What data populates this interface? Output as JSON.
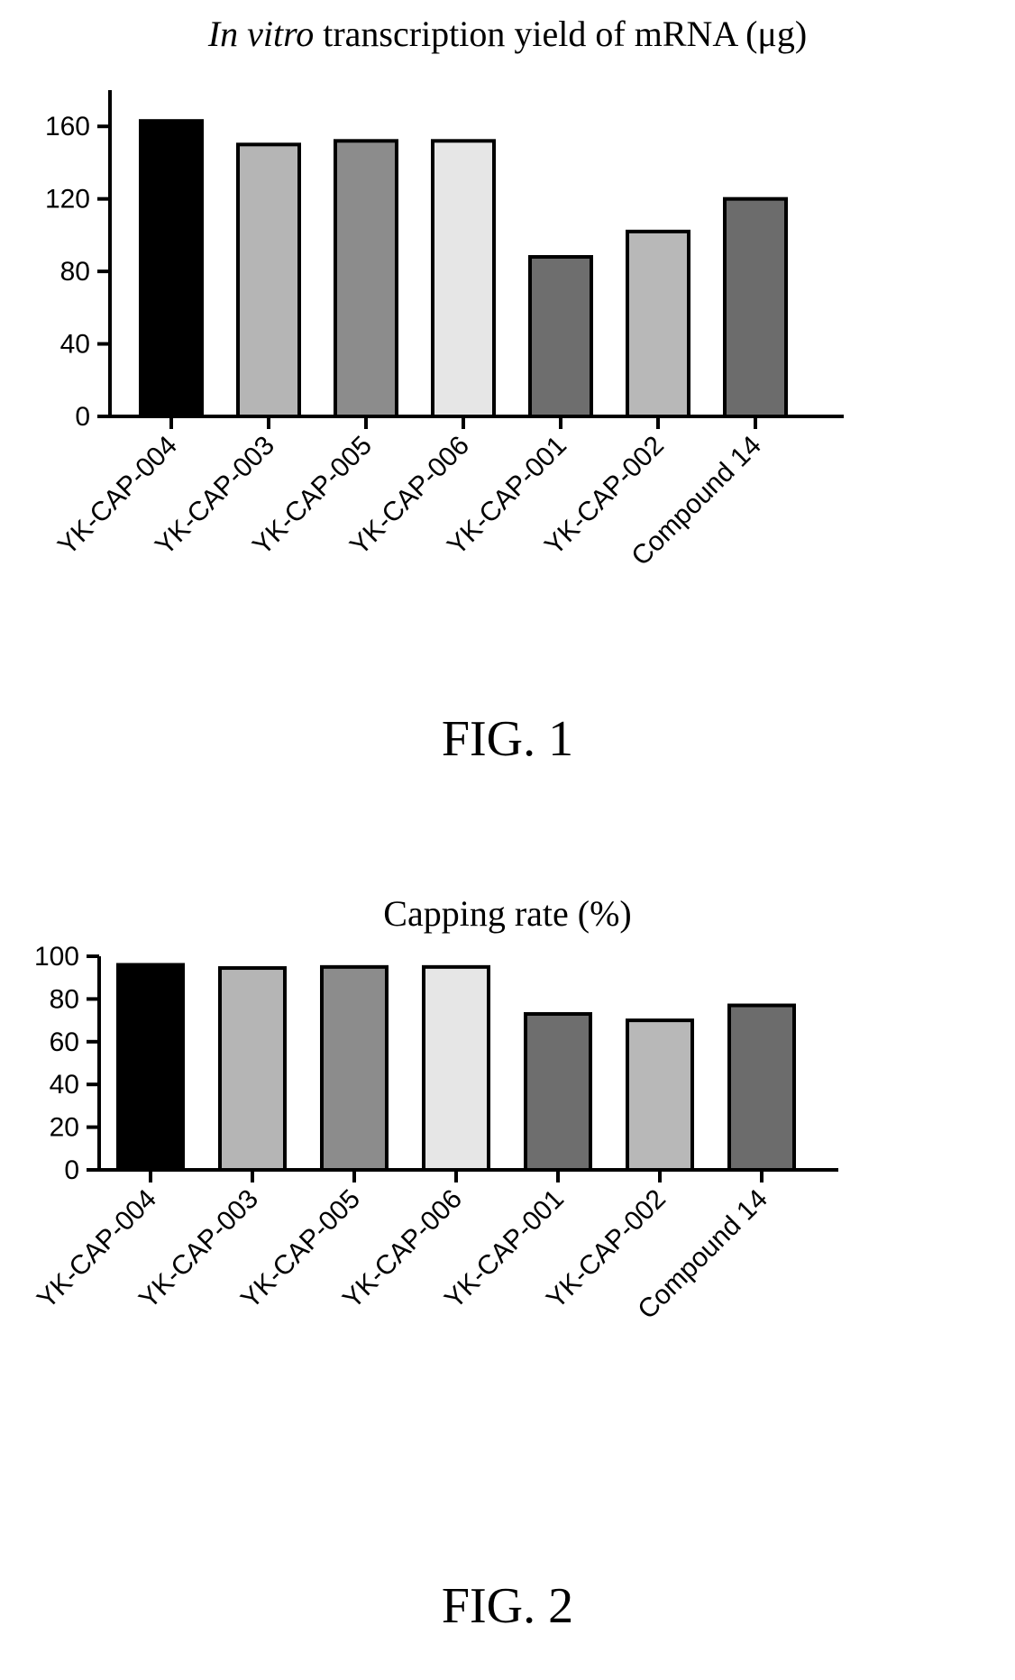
{
  "chart_data": [
    {
      "type": "bar",
      "title_italic": "In vitro",
      "title_rest": " transcription yield of mRNA (μg)",
      "figure_label": "FIG. 1",
      "categories": [
        "YK-CAP-004",
        "YK-CAP-003",
        "YK-CAP-005",
        "YK-CAP-006",
        "YK-CAP-001",
        "YK-CAP-002",
        "Compound 14"
      ],
      "values": [
        163,
        150,
        152,
        152,
        88,
        102,
        120
      ],
      "bar_colors": [
        "#000000",
        "#b5b5b5",
        "#8c8c8c",
        "#e6e6e6",
        "#6e6e6e",
        "#b8b8b8",
        "#6c6c6c"
      ],
      "yticks": [
        0,
        40,
        80,
        120,
        160
      ],
      "ylim": [
        0,
        180
      ],
      "xlabel": "",
      "ylabel": "",
      "grid": false
    },
    {
      "type": "bar",
      "title": "Capping rate (%)",
      "figure_label": "FIG. 2",
      "categories": [
        "YK-CAP-004",
        "YK-CAP-003",
        "YK-CAP-005",
        "YK-CAP-006",
        "YK-CAP-001",
        "YK-CAP-002",
        "Compound 14"
      ],
      "values": [
        96,
        94.5,
        95,
        95,
        73,
        70,
        77
      ],
      "bar_colors": [
        "#000000",
        "#b5b5b5",
        "#8c8c8c",
        "#e6e6e6",
        "#6e6e6e",
        "#b8b8b8",
        "#6c6c6c"
      ],
      "yticks": [
        0,
        20,
        40,
        60,
        80,
        100
      ],
      "ylim": [
        0,
        100
      ],
      "xlabel": "",
      "ylabel": "",
      "grid": false
    }
  ]
}
